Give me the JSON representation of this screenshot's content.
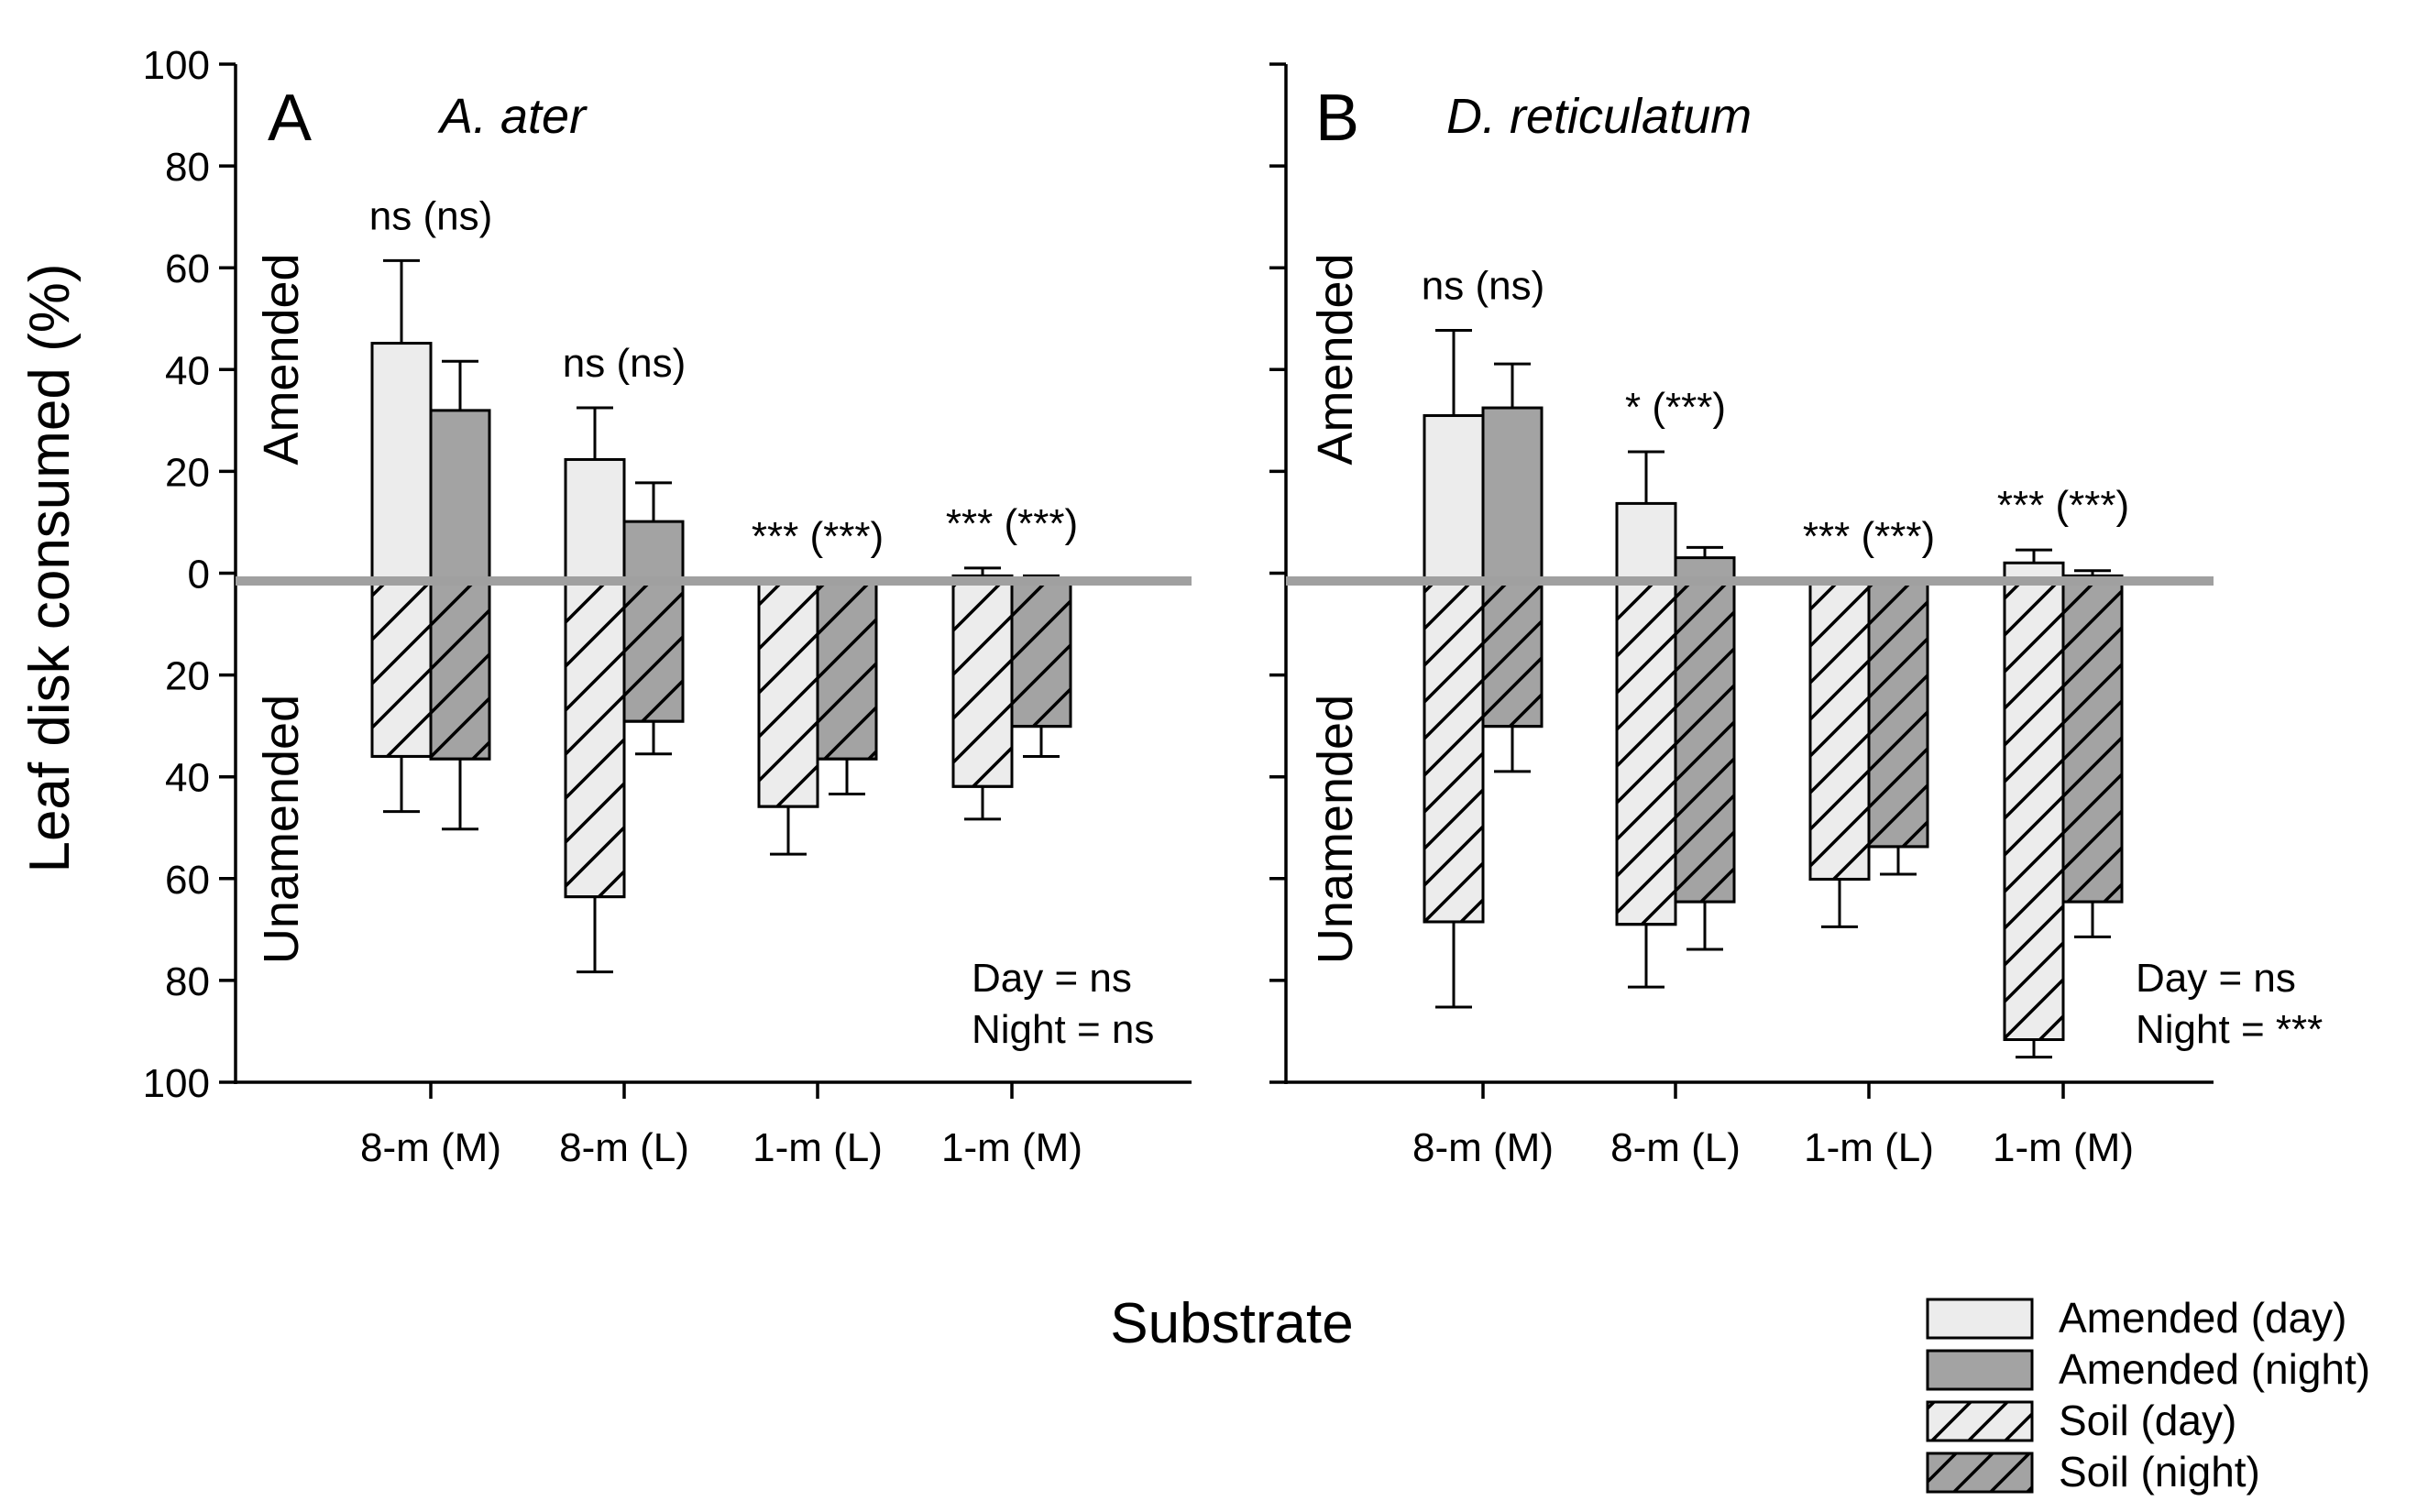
{
  "figure": {
    "ylabel": "Leaf disk consumed (%)",
    "xlabel": "Substrate",
    "y_tick_labels": [
      "100",
      "80",
      "60",
      "40",
      "20",
      "0",
      "20",
      "40",
      "60",
      "80",
      "100"
    ],
    "side_labels": {
      "amended": "Amended",
      "unamended": "Unamended"
    }
  },
  "legend": {
    "items": [
      {
        "label": "Amended (day)",
        "fill": "#ececec",
        "hatch": false
      },
      {
        "label": "Amended (night)",
        "fill": "#a3a3a3",
        "hatch": false
      },
      {
        "label": "Soil (day)",
        "fill": "#ececec",
        "hatch": true
      },
      {
        "label": "Soil (night)",
        "fill": "#a3a3a3",
        "hatch": true
      }
    ]
  },
  "colors": {
    "day": "#ececec",
    "night": "#a3a3a3",
    "zero_line": "#a0a0a0",
    "axis": "#000000"
  },
  "chart_data": [
    {
      "type": "bar",
      "panel": "A",
      "title": "A. ater",
      "categories": [
        "8-m (M)",
        "8-m (L)",
        "1-m (L)",
        "1-m (M)"
      ],
      "ylim": [
        -100,
        100
      ],
      "series": [
        {
          "name": "Amended (day)",
          "values": [
            46,
            23.5,
            0,
            1
          ],
          "errors": [
            16,
            10,
            0,
            1.5
          ]
        },
        {
          "name": "Amended (night)",
          "values": [
            33,
            11.5,
            0,
            0.5
          ],
          "errors": [
            9.5,
            7.5,
            0,
            0.5
          ]
        },
        {
          "name": "Soil (day)",
          "values": [
            -35,
            -63,
            -45,
            -41
          ],
          "errors": [
            11,
            15,
            9.5,
            6.5
          ]
        },
        {
          "name": "Soil (night)",
          "values": [
            -35.5,
            -28,
            -35.5,
            -29
          ],
          "errors": [
            14,
            6.5,
            7,
            6
          ]
        }
      ],
      "annotations": [
        "ns (ns)",
        "ns (ns)",
        "*** (***)",
        "*** (***)"
      ],
      "stats": {
        "day": "Day = ns",
        "night": "Night = ns"
      }
    },
    {
      "type": "bar",
      "panel": "B",
      "title": "D. reticulatum",
      "categories": [
        "8-m (M)",
        "8-m (L)",
        "1-m (L)",
        "1-m (M)"
      ],
      "ylim": [
        -100,
        100
      ],
      "series": [
        {
          "name": "Amended (day)",
          "values": [
            32,
            15,
            0,
            3.5
          ],
          "errors": [
            16.5,
            10,
            0,
            2.5
          ]
        },
        {
          "name": "Amended (night)",
          "values": [
            33.5,
            4.5,
            0,
            1
          ],
          "errors": [
            8.5,
            2,
            0,
            1
          ]
        },
        {
          "name": "Soil (day)",
          "values": [
            -68,
            -68.5,
            -59.5,
            -91.5
          ],
          "errors": [
            17,
            12.5,
            9.5,
            3.5
          ]
        },
        {
          "name": "Soil (night)",
          "values": [
            -29,
            -64,
            -53,
            -64
          ],
          "errors": [
            9,
            9.5,
            5.5,
            7
          ]
        }
      ],
      "annotations": [
        "ns (ns)",
        "* (***)",
        "*** (***)",
        "*** (***)"
      ],
      "stats": {
        "day": "Day = ns",
        "night": "Night = ***"
      }
    }
  ]
}
